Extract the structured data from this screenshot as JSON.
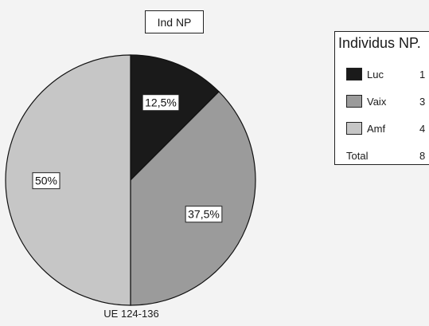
{
  "chart_data": {
    "type": "pie",
    "title": "Ind NP",
    "subtitle": "UE 124-136",
    "slices": [
      {
        "label": "Luc",
        "value": 1,
        "percent_label": "12,5%",
        "color": "#1a1a1a"
      },
      {
        "label": "Vaix",
        "value": 3,
        "percent_label": "37,5%",
        "color": "#9b9b9b"
      },
      {
        "label": "Amf",
        "value": 4,
        "percent_label": "50%",
        "color": "#c6c6c6"
      }
    ],
    "legend": {
      "title": "Individus NP.",
      "total_label": "Total",
      "total_value": "8",
      "placement": "right"
    }
  }
}
